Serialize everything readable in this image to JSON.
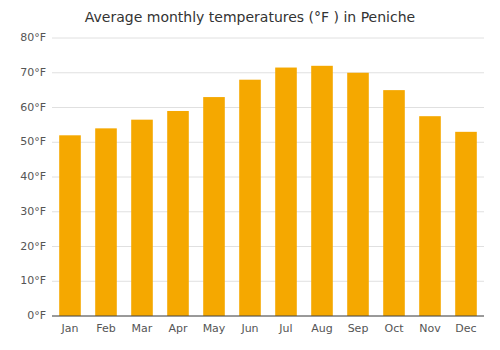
{
  "chart_data": {
    "type": "bar",
    "title": "Average monthly temperatures (°F ) in Peniche",
    "categories": [
      "Jan",
      "Feb",
      "Mar",
      "Apr",
      "May",
      "Jun",
      "Jul",
      "Aug",
      "Sep",
      "Oct",
      "Nov",
      "Dec"
    ],
    "values": [
      52,
      54,
      56.5,
      59,
      63,
      68,
      71.5,
      72,
      70,
      65,
      57.5,
      53
    ],
    "color": "#F5A800",
    "ylim": [
      0,
      80
    ],
    "yticks": [
      {
        "value": 0,
        "label": "0°F"
      },
      {
        "value": 10,
        "label": "10°F"
      },
      {
        "value": 20,
        "label": "20°F"
      },
      {
        "value": 30,
        "label": "30°F"
      },
      {
        "value": 40,
        "label": "40°F"
      },
      {
        "value": 50,
        "label": "50°F"
      },
      {
        "value": 60,
        "label": "60°F"
      },
      {
        "value": 70,
        "label": "70°F"
      },
      {
        "value": 80,
        "label": "80°F"
      }
    ],
    "grid": true
  }
}
